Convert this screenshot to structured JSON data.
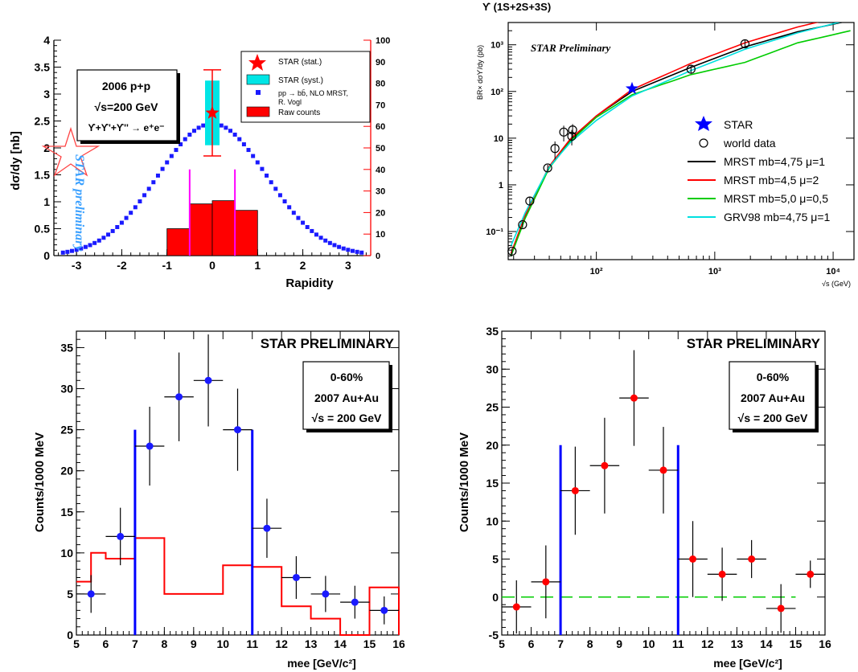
{
  "chart_data": [
    {
      "id": "panel1",
      "type": "scatter",
      "xlabel": "Rapidity",
      "ylabel": "dσ/dy [nb]",
      "ylabel_right": "",
      "xlim": [
        -3.5,
        3.5
      ],
      "ylim": [
        0,
        4
      ],
      "ylim_right": [
        0,
        100
      ],
      "x_ticks": [
        "-3",
        "-2",
        "-1",
        "0",
        "1",
        "2",
        "3"
      ],
      "y_ticks": [
        "0",
        "0.5",
        "1",
        "1.5",
        "2",
        "2.5",
        "3",
        "3.5",
        "4"
      ],
      "y_ticks_right": [
        "0",
        "10",
        "20",
        "30",
        "40",
        "50",
        "60",
        "70",
        "80",
        "90",
        "100"
      ],
      "info_box": [
        "2006 p+p",
        "√s=200 GeV",
        "ϒ+ϒ'+ϒ'' → e⁺e⁻"
      ],
      "watermark": "STAR preliminary",
      "legend": [
        "STAR (stat.)",
        "STAR (syst.)",
        "pp → bb̄, NLO MRST,",
        "R. Vogl",
        "Raw counts"
      ],
      "star_point": {
        "x": 0,
        "y": 2.65,
        "stat_low": 1.85,
        "stat_high": 3.45,
        "syst_low": 2.05,
        "syst_high": 3.25
      },
      "nlo_curve": {
        "mean": 0,
        "sigma": 1.2,
        "peak": 2.45,
        "xmin": -3.3,
        "xmax": 3.3
      },
      "raw_counts": [
        {
          "x0": -1.0,
          "x1": -0.5,
          "y": 12.5
        },
        {
          "x0": -0.5,
          "x1": 0.0,
          "y": 24
        },
        {
          "x0": 0.0,
          "x1": 0.5,
          "y": 25.5
        },
        {
          "x0": 0.5,
          "x1": 1.0,
          "y": 21
        }
      ],
      "magenta_lines": [
        -0.5,
        0.5
      ],
      "colors": {
        "nlo": "#1a1aff",
        "raw": "#ff0000",
        "syst": "#00e5e5",
        "star": "#ff0000",
        "magenta": "#ff00ff",
        "watermark": "#3aa0ff"
      }
    },
    {
      "id": "panel2",
      "type": "line",
      "title": "ϒ (1S+2S+3S)",
      "annotation": "STAR Preliminary",
      "xlabel": "√s (GeV)",
      "ylabel": "BR× dσϒ/dy (pb)",
      "log_x": true,
      "log_y": true,
      "xlim": [
        18,
        15000
      ],
      "ylim": [
        0.025,
        3000
      ],
      "x_tick_labels": [
        "10²",
        "10³",
        "10⁴"
      ],
      "y_tick_labels": [
        "10⁻¹",
        "1",
        "10",
        "10²",
        "10³"
      ],
      "legend": [
        "STAR",
        "world data",
        "MRST mb=4,75 μ=1",
        "MRST mb=4,5 μ=2",
        "MRST mb=5,0 μ=0,5",
        "GRV98 mb=4,75 μ=1"
      ],
      "star_point": {
        "x": 200,
        "y": 115
      },
      "world_data": [
        {
          "x": 19.4,
          "y": 0.038,
          "err": 0.006
        },
        {
          "x": 23.8,
          "y": 0.14,
          "err": 0.02
        },
        {
          "x": 27.4,
          "y": 0.45,
          "err": 0.09
        },
        {
          "x": 38.8,
          "y": 2.3,
          "err": 0.4
        },
        {
          "x": 44.7,
          "y": 6.0,
          "err": 2.5
        },
        {
          "x": 53,
          "y": 13.5,
          "err": 5
        },
        {
          "x": 62,
          "y": 11,
          "err": 4
        },
        {
          "x": 63,
          "y": 15,
          "err": 5
        },
        {
          "x": 630,
          "y": 300,
          "err": 60
        },
        {
          "x": 1800,
          "y": 1050,
          "err": 200
        }
      ],
      "series": [
        {
          "name": "MRST mb=4,75 μ=1",
          "color": "#000000",
          "x": [
            19,
            25,
            40,
            60,
            100,
            200,
            630,
            1800,
            5000,
            14000
          ],
          "y": [
            0.032,
            0.2,
            2.4,
            9,
            30,
            100,
            330,
            900,
            1900,
            3300
          ]
        },
        {
          "name": "MRST mb=4,5 μ=2",
          "color": "#ff0000",
          "x": [
            19,
            25,
            40,
            60,
            100,
            200,
            630,
            1800,
            5000,
            14000
          ],
          "y": [
            0.034,
            0.22,
            2.5,
            9.5,
            30,
            110,
            400,
            1100,
            2400,
            4500
          ]
        },
        {
          "name": "MRST mb=5,0 μ=0,5",
          "color": "#00cc00",
          "x": [
            19,
            25,
            40,
            60,
            100,
            200,
            630,
            1800,
            5000,
            14000
          ],
          "y": [
            0.03,
            0.19,
            2.3,
            8.5,
            28,
            85,
            230,
            420,
            1100,
            2000
          ]
        },
        {
          "name": "GRV98 mb=4,75 μ=1",
          "color": "#00e0e0",
          "x": [
            19,
            25,
            40,
            60,
            100,
            200,
            630,
            1800,
            5000,
            14000
          ],
          "y": [
            0.05,
            0.25,
            2.4,
            8,
            24,
            80,
            280,
            800,
            1800,
            3500
          ]
        }
      ]
    },
    {
      "id": "panel3",
      "type": "bar",
      "title": "STAR PRELIMINARY",
      "info_box": [
        "0-60%",
        "2007 Au+Au",
        "√s = 200 GeV"
      ],
      "xlabel": "mee [GeV/c²]",
      "ylabel": "Counts/1000 MeV",
      "xlim": [
        5,
        16
      ],
      "ylim": [
        0,
        37
      ],
      "x_ticks": [
        "5",
        "6",
        "7",
        "8",
        "9",
        "10",
        "11",
        "12",
        "13",
        "14",
        "15",
        "16"
      ],
      "y_ticks": [
        "0",
        "5",
        "10",
        "15",
        "20",
        "25",
        "30",
        "35"
      ],
      "points": [
        {
          "x": 5.5,
          "y": 5,
          "err": 2.3
        },
        {
          "x": 6.5,
          "y": 12,
          "err": 3.5
        },
        {
          "x": 7.5,
          "y": 23,
          "err": 4.8
        },
        {
          "x": 8.5,
          "y": 29,
          "err": 5.4
        },
        {
          "x": 9.5,
          "y": 31,
          "err": 5.6
        },
        {
          "x": 10.5,
          "y": 25,
          "err": 5
        },
        {
          "x": 11.5,
          "y": 13,
          "err": 3.6
        },
        {
          "x": 12.5,
          "y": 7,
          "err": 2.6
        },
        {
          "x": 13.5,
          "y": 5,
          "err": 2.2
        },
        {
          "x": 14.5,
          "y": 4,
          "err": 2
        },
        {
          "x": 15.5,
          "y": 3,
          "err": 1.7
        }
      ],
      "background": [
        6.5,
        10,
        9.3,
        11.8,
        5,
        5,
        8.5,
        8.3,
        3.5,
        2,
        0,
        5.8,
        0
      ],
      "background_edges": [
        5,
        5.5,
        6,
        7,
        8,
        9,
        10,
        11,
        12,
        13,
        14,
        15,
        16
      ],
      "blue_lines": [
        7,
        11
      ],
      "colors": {
        "points": "#1a1aff",
        "background": "#ff0000",
        "lines": "#0000ff"
      }
    },
    {
      "id": "panel4",
      "type": "scatter",
      "title": "STAR PRELIMINARY",
      "info_box": [
        "0-60%",
        "2007 Au+Au",
        "√s = 200 GeV"
      ],
      "xlabel": "mee [GeV/c²]",
      "ylabel": "Counts/1000 MeV",
      "xlim": [
        5,
        16
      ],
      "ylim": [
        -5,
        35
      ],
      "x_ticks": [
        "5",
        "6",
        "7",
        "8",
        "9",
        "10",
        "11",
        "12",
        "13",
        "14",
        "15",
        "16"
      ],
      "y_ticks": [
        "-5",
        "0",
        "5",
        "10",
        "15",
        "20",
        "25",
        "30",
        "35"
      ],
      "points": [
        {
          "x": 5.5,
          "y": -1.3,
          "err": 3.5
        },
        {
          "x": 6.5,
          "y": 2,
          "err": 4.8
        },
        {
          "x": 7.5,
          "y": 14,
          "err": 5.8
        },
        {
          "x": 8.5,
          "y": 17.3,
          "err": 6.3
        },
        {
          "x": 9.5,
          "y": 26.2,
          "err": 6.3
        },
        {
          "x": 10.5,
          "y": 16.7,
          "err": 5.7
        },
        {
          "x": 11.5,
          "y": 5,
          "err": 5
        },
        {
          "x": 12.5,
          "y": 3,
          "err": 3.5
        },
        {
          "x": 13.5,
          "y": 5,
          "err": 2.5
        },
        {
          "x": 14.5,
          "y": -1.5,
          "err": 3.2
        },
        {
          "x": 15.5,
          "y": 3,
          "err": 1.8
        }
      ],
      "zero_line": {
        "y": 0,
        "x0": 5,
        "x1": 15
      },
      "blue_lines": [
        7,
        11
      ],
      "colors": {
        "points": "#ff0000",
        "zero": "#00cc00",
        "lines": "#0000ff"
      }
    }
  ]
}
